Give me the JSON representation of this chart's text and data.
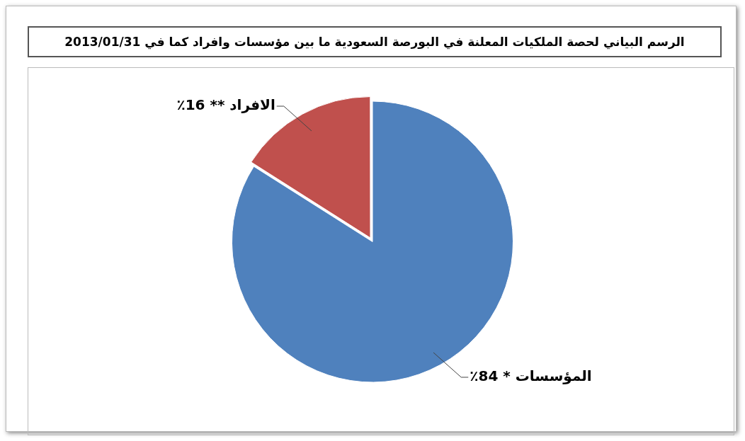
{
  "chart_data": {
    "type": "pie",
    "title": "الرسم البياني لحصة الملكيات المعلنة في البورصة السعودية ما بين مؤسسات وافراد كما في 2013/01/31",
    "categories": [
      "المؤسسات",
      "الافراد"
    ],
    "values": [
      84,
      16
    ],
    "colors": [
      "#4f81bd",
      "#c0504d"
    ],
    "value_labels": [
      "* 84٪",
      "** 16٪"
    ],
    "legend": false
  }
}
